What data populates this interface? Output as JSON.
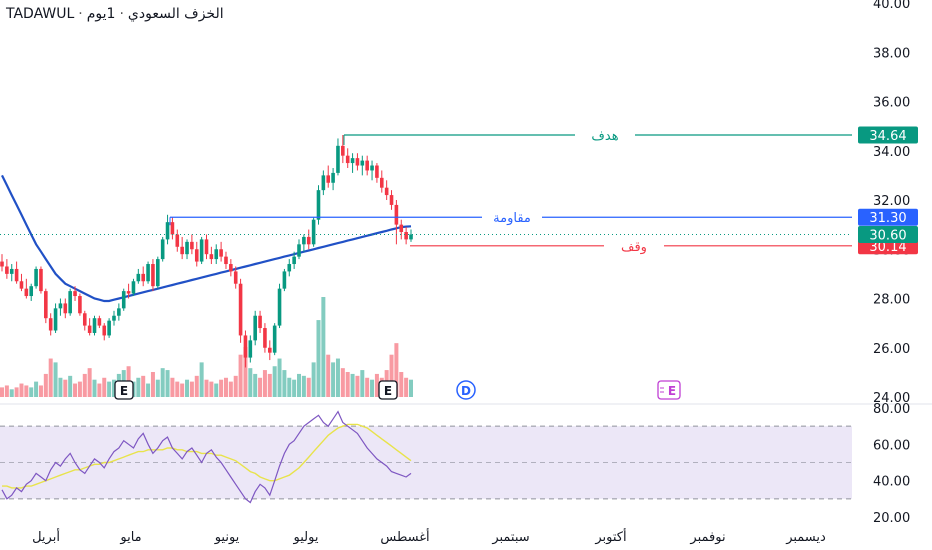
{
  "header": {
    "symbol": "TADAWUL",
    "name": "الخزف السعودي",
    "interval": "1يوم",
    "separator": "·"
  },
  "chart_data": {
    "type": "candlestick",
    "price_axis": {
      "ticks": [
        24,
        26,
        28,
        30,
        32,
        34,
        36,
        38,
        40
      ],
      "tick_labels": [
        "24.00",
        "26.00",
        "28.00",
        "30.00",
        "32.00",
        "34.00",
        "36.00",
        "38.00",
        "40.00"
      ],
      "ylim": [
        24,
        40
      ]
    },
    "rsi_axis": {
      "tick_labels": [
        "20.00",
        "40.00",
        "60.00",
        "80.00"
      ],
      "ticks": [
        20,
        40,
        60,
        80
      ],
      "ylim": [
        20,
        80
      ],
      "band_top": 70,
      "band_bottom": 30,
      "mid": 50
    },
    "x_labels": [
      "أبريل",
      "مايو",
      "يونيو",
      "يوليو",
      "أغسطس",
      "سبتمبر",
      "أكتوبر",
      "نوفمبر",
      "ديسمبر"
    ],
    "levels": [
      {
        "name": "هدف",
        "value": 34.64,
        "label": "34.64",
        "color": "#089981"
      },
      {
        "name": "مقاومة",
        "value": 31.3,
        "label": "31.30",
        "color": "#2962ff"
      },
      {
        "name": "وقف",
        "value": 30.14,
        "label": "30.14",
        "color": "#f23645"
      }
    ],
    "last_price": {
      "value": 30.6,
      "label": "30.60",
      "color": "#089981"
    },
    "candles": [
      [
        29.5,
        29.8,
        29.1,
        29.3
      ],
      [
        29.3,
        29.6,
        28.8,
        29.0
      ],
      [
        29.0,
        29.4,
        28.7,
        29.2
      ],
      [
        29.2,
        29.5,
        28.6,
        28.7
      ],
      [
        28.7,
        29.0,
        28.3,
        28.4
      ],
      [
        28.4,
        28.8,
        28.0,
        28.1
      ],
      [
        28.1,
        28.6,
        27.9,
        28.5
      ],
      [
        28.5,
        29.3,
        28.4,
        29.2
      ],
      [
        29.2,
        29.3,
        28.2,
        28.3
      ],
      [
        28.3,
        28.4,
        27.0,
        27.2
      ],
      [
        27.2,
        27.4,
        26.5,
        26.7
      ],
      [
        26.7,
        27.8,
        26.6,
        27.6
      ],
      [
        27.6,
        28.0,
        27.3,
        27.8
      ],
      [
        27.8,
        28.0,
        27.2,
        27.4
      ],
      [
        27.4,
        28.4,
        27.3,
        28.3
      ],
      [
        28.3,
        28.5,
        27.9,
        28.1
      ],
      [
        28.1,
        28.2,
        27.3,
        27.4
      ],
      [
        27.4,
        27.5,
        26.7,
        26.9
      ],
      [
        26.9,
        27.2,
        26.5,
        26.6
      ],
      [
        26.6,
        27.3,
        26.5,
        27.2
      ],
      [
        27.2,
        27.3,
        26.8,
        26.9
      ],
      [
        26.9,
        27.0,
        26.3,
        26.5
      ],
      [
        26.5,
        27.2,
        26.4,
        27.1
      ],
      [
        27.1,
        27.5,
        26.9,
        27.3
      ],
      [
        27.3,
        27.8,
        27.1,
        27.6
      ],
      [
        27.6,
        28.4,
        27.5,
        28.3
      ],
      [
        28.3,
        28.6,
        28.0,
        28.2
      ],
      [
        28.2,
        28.8,
        28.1,
        28.7
      ],
      [
        28.7,
        29.2,
        28.6,
        29.0
      ],
      [
        29.0,
        29.3,
        28.5,
        28.7
      ],
      [
        28.7,
        29.5,
        28.6,
        29.4
      ],
      [
        29.4,
        29.6,
        28.3,
        28.5
      ],
      [
        28.5,
        29.7,
        28.4,
        29.6
      ],
      [
        29.6,
        30.5,
        29.5,
        30.4
      ],
      [
        30.4,
        31.4,
        30.2,
        31.1
      ],
      [
        31.1,
        31.3,
        30.4,
        30.6
      ],
      [
        30.6,
        30.8,
        29.9,
        30.1
      ],
      [
        30.1,
        30.5,
        29.6,
        29.8
      ],
      [
        29.8,
        30.4,
        29.6,
        30.3
      ],
      [
        30.3,
        30.6,
        29.8,
        30.0
      ],
      [
        30.0,
        30.3,
        29.3,
        29.5
      ],
      [
        29.5,
        30.5,
        29.4,
        30.4
      ],
      [
        30.4,
        30.6,
        29.6,
        29.8
      ],
      [
        29.8,
        30.1,
        29.4,
        29.6
      ],
      [
        29.6,
        30.2,
        29.4,
        30.0
      ],
      [
        30.0,
        30.3,
        29.5,
        29.7
      ],
      [
        29.7,
        29.9,
        29.2,
        29.4
      ],
      [
        29.4,
        29.6,
        28.9,
        29.1
      ],
      [
        29.1,
        29.3,
        28.4,
        28.6
      ],
      [
        28.6,
        28.8,
        26.2,
        26.5
      ],
      [
        26.5,
        26.7,
        25.2,
        25.6
      ],
      [
        25.6,
        26.5,
        25.4,
        26.3
      ],
      [
        26.3,
        27.5,
        26.1,
        27.3
      ],
      [
        27.3,
        27.5,
        26.6,
        26.8
      ],
      [
        26.8,
        27.0,
        25.8,
        26.0
      ],
      [
        26.0,
        26.3,
        25.5,
        25.8
      ],
      [
        25.8,
        27.0,
        25.7,
        26.9
      ],
      [
        26.9,
        28.6,
        26.8,
        28.4
      ],
      [
        28.4,
        29.2,
        28.3,
        29.1
      ],
      [
        29.1,
        29.6,
        28.9,
        29.4
      ],
      [
        29.4,
        29.9,
        29.2,
        29.7
      ],
      [
        29.7,
        30.4,
        29.6,
        30.2
      ],
      [
        30.2,
        30.6,
        29.9,
        30.5
      ],
      [
        30.5,
        30.8,
        30.0,
        30.2
      ],
      [
        30.2,
        31.3,
        30.1,
        31.2
      ],
      [
        31.2,
        32.6,
        31.0,
        32.4
      ],
      [
        32.4,
        33.2,
        32.2,
        33.0
      ],
      [
        33.0,
        33.4,
        32.5,
        32.7
      ],
      [
        32.7,
        33.3,
        32.4,
        33.1
      ],
      [
        33.1,
        34.5,
        33.0,
        34.2
      ],
      [
        34.2,
        34.64,
        33.5,
        33.8
      ],
      [
        33.8,
        34.1,
        33.3,
        33.5
      ],
      [
        33.5,
        33.9,
        33.1,
        33.7
      ],
      [
        33.7,
        33.9,
        33.2,
        33.4
      ],
      [
        33.4,
        33.8,
        33.0,
        33.6
      ],
      [
        33.6,
        33.8,
        33.0,
        33.2
      ],
      [
        33.2,
        33.6,
        32.8,
        33.4
      ],
      [
        33.4,
        33.5,
        32.7,
        32.9
      ],
      [
        32.9,
        33.2,
        32.3,
        32.5
      ],
      [
        32.5,
        32.8,
        32.0,
        32.2
      ],
      [
        32.2,
        32.4,
        31.6,
        31.8
      ],
      [
        31.8,
        32.0,
        30.2,
        31.0
      ],
      [
        31.0,
        31.2,
        30.4,
        30.7
      ],
      [
        30.7,
        30.9,
        30.2,
        30.4
      ],
      [
        30.4,
        30.8,
        30.3,
        30.6
      ]
    ],
    "volume": [
      5,
      6,
      4,
      5,
      7,
      6,
      5,
      8,
      6,
      12,
      20,
      18,
      10,
      9,
      11,
      7,
      8,
      12,
      15,
      9,
      7,
      10,
      8,
      9,
      12,
      14,
      16,
      8,
      10,
      11,
      7,
      13,
      9,
      15,
      14,
      10,
      8,
      7,
      9,
      8,
      11,
      18,
      9,
      8,
      7,
      9,
      10,
      8,
      11,
      22,
      26,
      15,
      12,
      10,
      14,
      12,
      16,
      20,
      14,
      10,
      9,
      12,
      11,
      10,
      18,
      40,
      52,
      22,
      18,
      20,
      15,
      13,
      12,
      11,
      14,
      10,
      9,
      12,
      10,
      14,
      22,
      28,
      13,
      10,
      9
    ],
    "ma": [
      33.0,
      32.6,
      32.2,
      31.8,
      31.4,
      31.0,
      30.6,
      30.2,
      29.9,
      29.6,
      29.3,
      29.0,
      28.8,
      28.6,
      28.5,
      28.4,
      28.3,
      28.2,
      28.1,
      28.0,
      27.95,
      27.9,
      27.9,
      27.95,
      28.0,
      28.05,
      28.1,
      28.15,
      28.2,
      28.25,
      28.3,
      28.35,
      28.4,
      28.45,
      28.5,
      28.55,
      28.6,
      28.65,
      28.7,
      28.75,
      28.8,
      28.85,
      28.9,
      28.95,
      29.0,
      29.05,
      29.1,
      29.15,
      29.2,
      29.25,
      29.3,
      29.35,
      29.4,
      29.45,
      29.5,
      29.55,
      29.6,
      29.65,
      29.7,
      29.75,
      29.8,
      29.85,
      29.9,
      29.95,
      30.0,
      30.05,
      30.1,
      30.15,
      30.2,
      30.25,
      30.3,
      30.35,
      30.4,
      30.45,
      30.5,
      30.55,
      30.6,
      30.65,
      30.7,
      30.75,
      30.8,
      30.85,
      30.9,
      30.92,
      30.93
    ],
    "rsi": [
      35,
      30,
      32,
      36,
      34,
      38,
      40,
      44,
      42,
      40,
      46,
      50,
      48,
      52,
      55,
      50,
      46,
      44,
      48,
      52,
      50,
      47,
      52,
      56,
      58,
      62,
      60,
      58,
      63,
      66,
      60,
      55,
      58,
      62,
      64,
      58,
      55,
      52,
      56,
      58,
      54,
      50,
      55,
      57,
      53,
      50,
      46,
      42,
      38,
      34,
      30,
      28,
      34,
      38,
      36,
      32,
      40,
      48,
      55,
      60,
      62,
      66,
      70,
      72,
      74,
      76,
      72,
      70,
      74,
      78,
      72,
      70,
      68,
      66,
      62,
      58,
      55,
      52,
      50,
      48,
      45,
      44,
      43,
      42,
      44
    ],
    "rsi_ma": [
      37,
      37,
      36,
      36,
      36,
      37,
      37,
      38,
      39,
      40,
      41,
      42,
      43,
      44,
      45,
      46,
      46,
      47,
      48,
      49,
      49,
      50,
      50,
      51,
      52,
      53,
      54,
      55,
      56,
      56,
      57,
      57,
      57,
      57,
      58,
      58,
      57,
      57,
      56,
      56,
      56,
      55,
      55,
      55,
      54,
      54,
      53,
      52,
      51,
      49,
      47,
      45,
      44,
      42,
      41,
      40,
      40,
      41,
      42,
      43,
      45,
      47,
      50,
      53,
      56,
      59,
      62,
      65,
      67,
      69,
      70,
      71,
      71,
      71,
      70,
      69,
      67,
      65,
      63,
      61,
      59,
      57,
      55,
      53,
      51
    ]
  },
  "markers": {
    "earnings_label": "E",
    "dividend_label": "D",
    "future_earnings_label": "E"
  },
  "colors": {
    "up": "#089981",
    "down": "#f23645",
    "ma": "#2151c6",
    "rsi": "#7e57c2",
    "rsi_ma": "#e8e34b",
    "rsi_band": "#ece7f7",
    "grid_text": "#131722"
  }
}
